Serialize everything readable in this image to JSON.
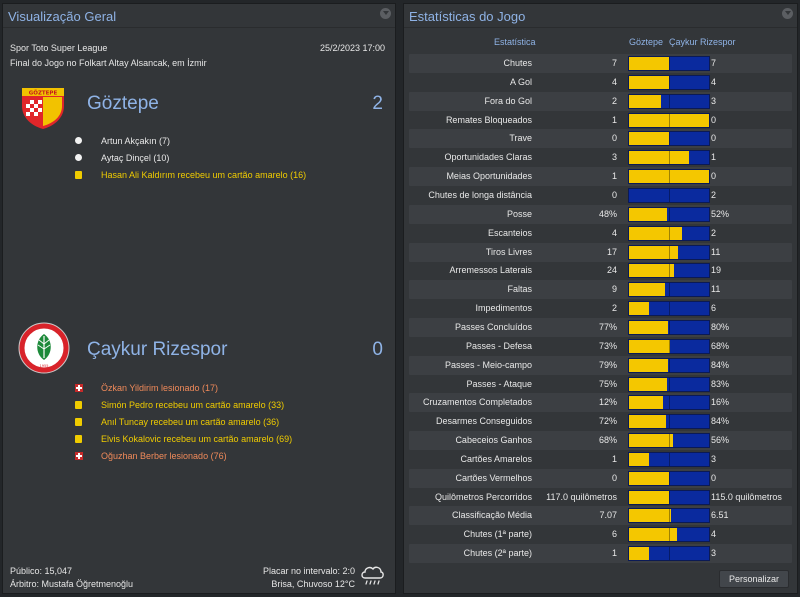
{
  "overview": {
    "title": "Visualização Geral",
    "competition": "Spor Toto Super League",
    "datetime": "25/2/2023 17:00",
    "venue": "Final do Jogo no Folkart Altay Alsancak, em İzmir",
    "home": {
      "name": "Göztepe",
      "score": "2",
      "crest_text": "GÖZTEPE",
      "events": [
        {
          "type": "goal",
          "text": "Artun Akçakın (7)"
        },
        {
          "type": "goal",
          "text": "Aytaç Dinçel (10)"
        },
        {
          "type": "yellow",
          "text": "Hasan Ali Kaldırım recebeu um cartão amarelo (16)"
        }
      ]
    },
    "away": {
      "name": "Çaykur Rizespor",
      "score": "0",
      "crest_text": "ÇAYKUR RİZESPOR KULÜBÜ",
      "crest_year": "1955",
      "events": [
        {
          "type": "injury",
          "text": "Özkan Yildirim lesionado (17)"
        },
        {
          "type": "yellow",
          "text": "Simón Pedro recebeu um cartão amarelo (33)"
        },
        {
          "type": "yellow",
          "text": "Anıl Tuncay recebeu um cartão amarelo (36)"
        },
        {
          "type": "yellow",
          "text": "Elvis Kokalovic recebeu um cartão amarelo (69)"
        },
        {
          "type": "injury",
          "text": "Oğuzhan Berber lesionado (76)"
        }
      ]
    },
    "attendance": "Público: 15,047",
    "referee": "Árbitro: Mustafa Öğretmenoğlu",
    "halftime": "Placar no intervalo: 2:0",
    "weather": "Brisa, Chuvoso 12°C"
  },
  "stats": {
    "title": "Estatísticas do Jogo",
    "col_stat": "Estatística",
    "col_home": "Göztepe",
    "col_away": "Çaykur Rizespor",
    "customize_label": "Personalizar",
    "colors": {
      "home": "#f4c700",
      "away": "#0a2a9e"
    },
    "rows": [
      {
        "label": "Chutes",
        "home": "7",
        "away": "7",
        "share": 0.5
      },
      {
        "label": "A Gol",
        "home": "4",
        "away": "4",
        "share": 0.5
      },
      {
        "label": "Fora do Gol",
        "home": "2",
        "away": "3",
        "share": 0.4
      },
      {
        "label": "Remates Bloqueados",
        "home": "1",
        "away": "0",
        "share": 1.0
      },
      {
        "label": "Trave",
        "home": "0",
        "away": "0",
        "share": 0.5
      },
      {
        "label": "Oportunidades Claras",
        "home": "3",
        "away": "1",
        "share": 0.75
      },
      {
        "label": "Meias Oportunidades",
        "home": "1",
        "away": "0",
        "share": 1.0
      },
      {
        "label": "Chutes de longa distância",
        "home": "0",
        "away": "2",
        "share": 0.0
      },
      {
        "label": "Posse",
        "home": "48%",
        "away": "52%",
        "share": 0.48
      },
      {
        "label": "Escanteios",
        "home": "4",
        "away": "2",
        "share": 0.667
      },
      {
        "label": "Tiros Livres",
        "home": "17",
        "away": "11",
        "share": 0.607
      },
      {
        "label": "Arremessos Laterais",
        "home": "24",
        "away": "19",
        "share": 0.558
      },
      {
        "label": "Faltas",
        "home": "9",
        "away": "11",
        "share": 0.45
      },
      {
        "label": "Impedimentos",
        "home": "2",
        "away": "6",
        "share": 0.25
      },
      {
        "label": "Passes Concluídos",
        "home": "77%",
        "away": "80%",
        "share": 0.49
      },
      {
        "label": "Passes - Defesa",
        "home": "73%",
        "away": "68%",
        "share": 0.518
      },
      {
        "label": "Passes - Meio-campo",
        "home": "79%",
        "away": "84%",
        "share": 0.485
      },
      {
        "label": "Passes - Ataque",
        "home": "75%",
        "away": "83%",
        "share": 0.475
      },
      {
        "label": "Cruzamentos Completados",
        "home": "12%",
        "away": "16%",
        "share": 0.43
      },
      {
        "label": "Desarmes Conseguidos",
        "home": "72%",
        "away": "84%",
        "share": 0.46
      },
      {
        "label": "Cabeceios Ganhos",
        "home": "68%",
        "away": "56%",
        "share": 0.55
      },
      {
        "label": "Cartões Amarelos",
        "home": "1",
        "away": "3",
        "share": 0.25
      },
      {
        "label": "Cartões Vermelhos",
        "home": "0",
        "away": "0",
        "share": 0.5
      },
      {
        "label": "Quilômetros Percorridos",
        "home": "117.0 quilômetros",
        "away": "115.0 quilômetros",
        "share": 0.504
      },
      {
        "label": "Classificação Média",
        "home": "7.07",
        "away": "6.51",
        "share": 0.52
      },
      {
        "label": "Chutes (1ª parte)",
        "home": "6",
        "away": "4",
        "share": 0.6
      },
      {
        "label": "Chutes (2ª parte)",
        "home": "1",
        "away": "3",
        "share": 0.25
      }
    ]
  }
}
